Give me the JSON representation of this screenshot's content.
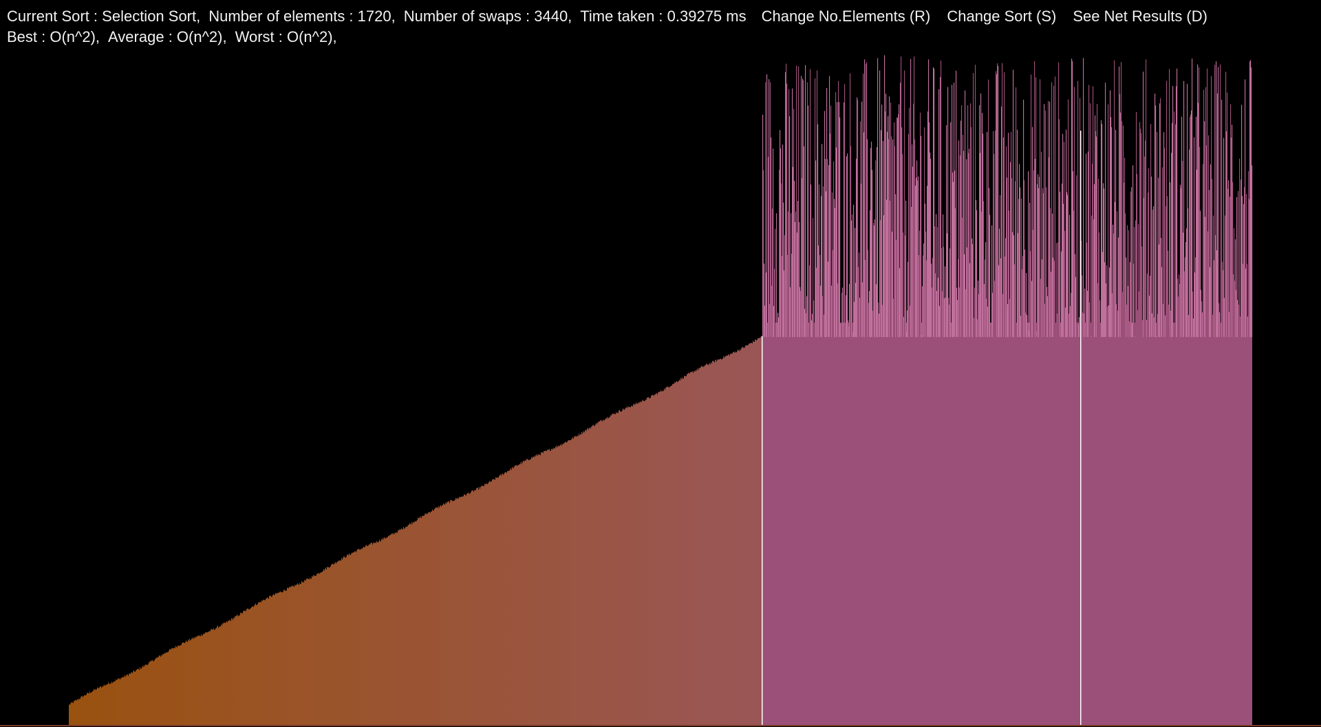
{
  "hud": {
    "current_sort": "Current Sort : Selection Sort,",
    "num_elements": "Number of elements : 1720,",
    "num_swaps": "Number of swaps : 3440,",
    "time_taken": "Time taken : 0.39275 ms",
    "change_elements": "Change No.Elements (R)",
    "change_sort": "Change Sort (S)",
    "see_results": "See Net Results (D)",
    "best": "Best : O(n^2),",
    "average": "Average : O(n^2),",
    "worst": "Worst : O(n^2),"
  },
  "colors": {
    "background": "#000000",
    "sorted_start": "#9a5210",
    "sorted_end": "#9a5656",
    "unsorted": "#9a5078",
    "unsorted_tip": "#c0709c",
    "marker": "#ffffff"
  },
  "chart_data": {
    "type": "bar",
    "num_elements": 1720,
    "sorted_fraction": 0.5862,
    "marker_fraction": 0.8547,
    "sorted_value_range": [
      0.03,
      0.58
    ],
    "unsorted_value_range": [
      0.58,
      1.0
    ]
  }
}
